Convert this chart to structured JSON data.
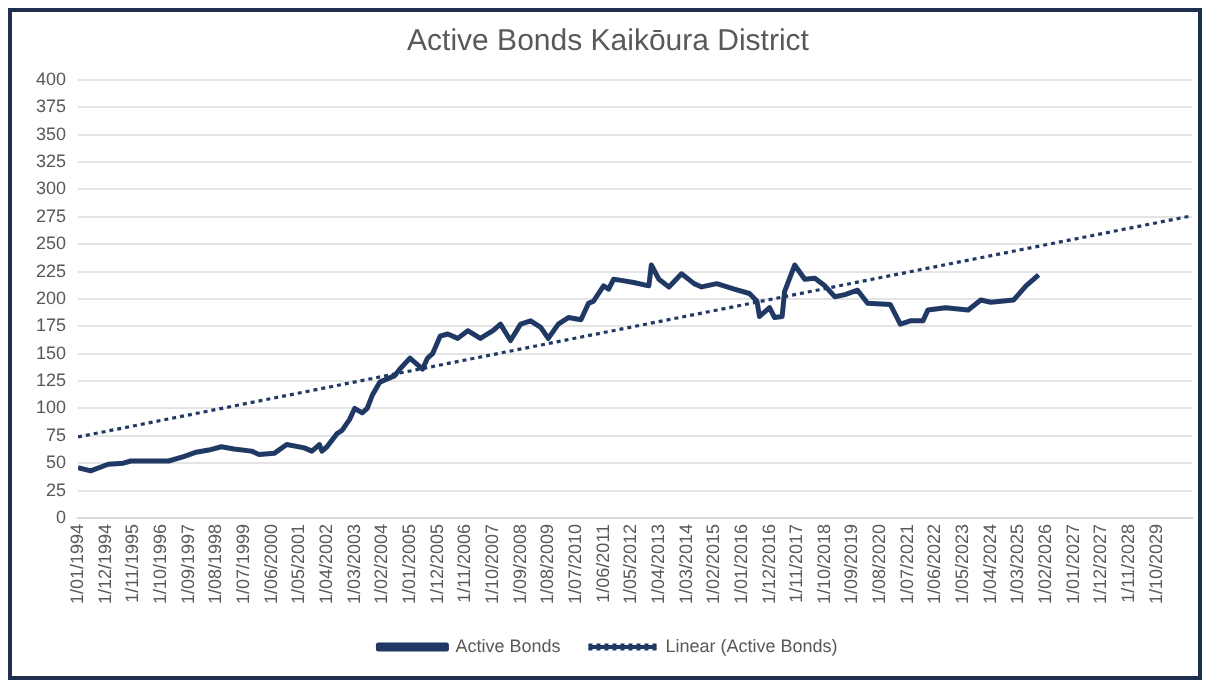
{
  "chart_data": {
    "type": "line",
    "title": "Active Bonds Kaikōura District",
    "xlim": [
      "1994-01",
      "2030-12"
    ],
    "ylim": [
      0,
      400
    ],
    "yticks": [
      0,
      25,
      50,
      75,
      100,
      125,
      150,
      175,
      200,
      225,
      250,
      275,
      300,
      325,
      350,
      375,
      400
    ],
    "xticks": [
      {
        "value": "1994-01",
        "label": "1/01/1994"
      },
      {
        "value": "1994-12",
        "label": "1/12/1994"
      },
      {
        "value": "1995-11",
        "label": "1/11/1995"
      },
      {
        "value": "1996-10",
        "label": "1/10/1996"
      },
      {
        "value": "1997-09",
        "label": "1/09/1997"
      },
      {
        "value": "1998-08",
        "label": "1/08/1998"
      },
      {
        "value": "1999-07",
        "label": "1/07/1999"
      },
      {
        "value": "2000-06",
        "label": "1/06/2000"
      },
      {
        "value": "2001-05",
        "label": "1/05/2001"
      },
      {
        "value": "2002-04",
        "label": "1/04/2002"
      },
      {
        "value": "2003-03",
        "label": "1/03/2003"
      },
      {
        "value": "2004-02",
        "label": "1/02/2004"
      },
      {
        "value": "2005-01",
        "label": "1/01/2005"
      },
      {
        "value": "2005-12",
        "label": "1/12/2005"
      },
      {
        "value": "2006-11",
        "label": "1/11/2006"
      },
      {
        "value": "2007-10",
        "label": "1/10/2007"
      },
      {
        "value": "2008-09",
        "label": "1/09/2008"
      },
      {
        "value": "2009-08",
        "label": "1/08/2009"
      },
      {
        "value": "2010-07",
        "label": "1/07/2010"
      },
      {
        "value": "2011-06",
        "label": "1/06/2011"
      },
      {
        "value": "2012-05",
        "label": "1/05/2012"
      },
      {
        "value": "2013-04",
        "label": "1/04/2013"
      },
      {
        "value": "2014-03",
        "label": "1/03/2014"
      },
      {
        "value": "2015-02",
        "label": "1/02/2015"
      },
      {
        "value": "2016-01",
        "label": "1/01/2016"
      },
      {
        "value": "2016-12",
        "label": "1/12/2016"
      },
      {
        "value": "2017-11",
        "label": "1/11/2017"
      },
      {
        "value": "2018-10",
        "label": "1/10/2018"
      },
      {
        "value": "2019-09",
        "label": "1/09/2019"
      },
      {
        "value": "2020-08",
        "label": "1/08/2020"
      },
      {
        "value": "2021-07",
        "label": "1/07/2021"
      },
      {
        "value": "2022-06",
        "label": "1/06/2022"
      },
      {
        "value": "2023-05",
        "label": "1/05/2023"
      },
      {
        "value": "2024-04",
        "label": "1/04/2024"
      },
      {
        "value": "2025-03",
        "label": "1/03/2025"
      },
      {
        "value": "2026-02",
        "label": "1/02/2026"
      },
      {
        "value": "2027-01",
        "label": "1/01/2027"
      },
      {
        "value": "2027-12",
        "label": "1/12/2027"
      },
      {
        "value": "2028-11",
        "label": "1/11/2028"
      },
      {
        "value": "2029-10",
        "label": "1/10/2029"
      }
    ],
    "grid": "y",
    "legend": "bottom",
    "marker": "none",
    "series": [
      {
        "name": "Active Bonds",
        "color": "#1f3864",
        "line_style": "solid",
        "x": [
          "1994-01",
          "1994-06",
          "1995-01",
          "1995-07",
          "1995-10",
          "1997-01",
          "1997-07",
          "1997-12",
          "1998-05",
          "1998-10",
          "1999-03",
          "1999-10",
          "2000-01",
          "2000-07",
          "2000-12",
          "2001-07",
          "2001-10",
          "2002-01",
          "2002-02",
          "2002-04",
          "2002-08",
          "2002-10",
          "2003-01",
          "2003-03",
          "2003-06",
          "2003-08",
          "2003-10",
          "2004-01",
          "2004-04",
          "2004-07",
          "2004-09",
          "2005-01",
          "2005-06",
          "2005-08",
          "2005-10",
          "2006-01",
          "2006-04",
          "2006-08",
          "2006-12",
          "2007-05",
          "2007-10",
          "2008-01",
          "2008-05",
          "2008-09",
          "2009-01",
          "2009-05",
          "2009-08",
          "2009-12",
          "2010-04",
          "2010-09",
          "2010-12",
          "2011-02",
          "2011-06",
          "2011-08",
          "2011-10",
          "2012-01",
          "2012-06",
          "2012-12",
          "2013-01",
          "2013-04",
          "2013-08",
          "2014-01",
          "2014-06",
          "2014-09",
          "2015-03",
          "2015-10",
          "2016-04",
          "2016-07",
          "2016-08",
          "2016-12",
          "2017-02",
          "2017-05",
          "2017-06",
          "2017-10",
          "2018-02",
          "2018-06",
          "2018-10",
          "2019-02",
          "2019-06",
          "2019-11",
          "2020-03",
          "2020-12",
          "2021-04",
          "2021-08",
          "2022-01",
          "2022-03",
          "2022-10",
          "2023-07",
          "2023-12",
          "2024-04",
          "2025-01",
          "2025-06",
          "2025-11"
        ],
        "values": [
          46,
          43,
          49,
          50,
          52,
          52,
          56,
          60,
          62,
          65,
          63,
          61,
          58,
          59,
          67,
          64,
          61,
          67,
          61,
          65,
          77,
          80,
          90,
          100,
          96,
          100,
          112,
          124,
          127,
          130,
          136,
          146,
          136,
          146,
          150,
          166,
          168,
          164,
          171,
          164,
          171,
          177,
          162,
          177,
          180,
          174,
          164,
          177,
          183,
          181,
          196,
          198,
          212,
          209,
          218,
          217,
          215,
          212,
          231,
          218,
          211,
          223,
          214,
          211,
          214,
          209,
          205,
          198,
          184,
          192,
          183,
          184,
          207,
          231,
          218,
          219,
          212,
          202,
          204,
          208,
          196,
          195,
          177,
          180,
          180,
          190,
          192,
          190,
          199,
          197,
          199,
          212,
          222
        ]
      },
      {
        "name": "Linear (Active Bonds)",
        "color": "#1f3864",
        "line_style": "dotted",
        "x": [
          "1994-01",
          "2030-12"
        ],
        "values": [
          74,
          276
        ]
      }
    ]
  }
}
